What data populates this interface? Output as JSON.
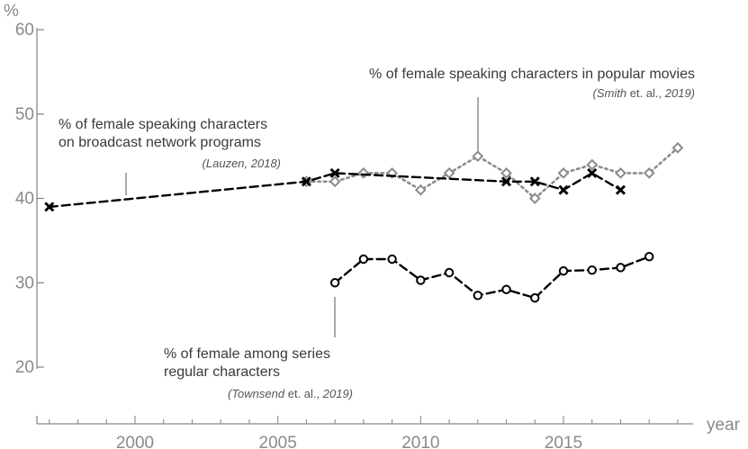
{
  "chart_data": {
    "type": "line",
    "title": "",
    "xlabel": "year",
    "ylabel": "%",
    "xlim": [
      1996.5,
      2020.0
    ],
    "ylim": [
      18.0,
      61.5
    ],
    "x_ticks": [
      2000,
      2005,
      2010,
      2015
    ],
    "y_ticks": [
      20,
      30,
      40,
      50,
      60
    ],
    "series": [
      {
        "name": "% of female speaking characters on broadcast network programs",
        "citation": [
          "Lauzen, 2018"
        ],
        "style": "dashed-black-cross",
        "x": [
          1997,
          2006,
          2007,
          2013,
          2014,
          2015,
          2016,
          2017
        ],
        "values": [
          39,
          42,
          43,
          42,
          42,
          41,
          43,
          41
        ]
      },
      {
        "name": "% of female speaking characters in popular movies",
        "citation": [
          "Smith",
          " et. al., ",
          "2019"
        ],
        "style": "dotted-gray-diamond",
        "x": [
          2006,
          2007,
          2008,
          2009,
          2010,
          2011,
          2012,
          2013,
          2014,
          2015,
          2016,
          2017,
          2018,
          2019
        ],
        "values": [
          42,
          42,
          43,
          43,
          41,
          43,
          45,
          43,
          40,
          43,
          44,
          43,
          43,
          46
        ]
      },
      {
        "name": "% of female among series regular characters",
        "citation": [
          "Townsend",
          " et. al., ",
          "2019"
        ],
        "style": "dashed-black-circle",
        "x": [
          2007,
          2008,
          2009,
          2010,
          2011,
          2012,
          2013,
          2014,
          2015,
          2016,
          2017,
          2018
        ],
        "values": [
          30,
          32.8,
          32.8,
          30.3,
          31.2,
          28.5,
          29.2,
          28.2,
          31.4,
          31.5,
          31.8,
          33.1
        ]
      }
    ],
    "annotations": {
      "broadcast": {
        "lines": [
          "% of female speaking characters",
          "on broadcast network programs"
        ],
        "citation": "(Lauzen, 2018)"
      },
      "movies": {
        "lines": [
          "% of female speaking characters in popular movies"
        ],
        "citation_italic_1": "(Smith",
        "citation_plain": " et. al., ",
        "citation_italic_2": "2019)"
      },
      "series_regular": {
        "lines": [
          "% of female among series",
          "regular characters"
        ],
        "citation_italic_1": "(Townsend",
        "citation_plain": " et. al., ",
        "citation_italic_2": "2019)"
      }
    }
  }
}
